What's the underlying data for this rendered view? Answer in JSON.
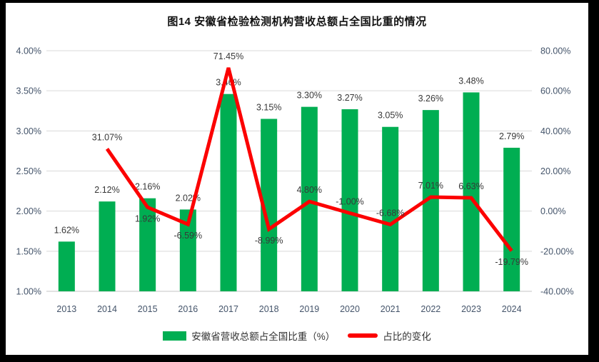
{
  "title": "图14 安徽省检验检测机构营收总额占全国比重的情况",
  "legend": [
    {
      "label": "安徽省营收总额占全国比重（%）",
      "type": "bar",
      "color": "#00AE52"
    },
    {
      "label": "占比的变化",
      "type": "line",
      "color": "#FC0000"
    }
  ],
  "colors": {
    "bar": "#00AE52",
    "line": "#FC0000",
    "grid": "#D9D9D9",
    "axis_text": "#44546A",
    "label_text": "#383838"
  },
  "chart_data": {
    "type": "combo",
    "title": "图14 安徽省检验检测机构营收总额占全国比重的情况",
    "categories": [
      "2013",
      "2014",
      "2015",
      "2016",
      "2017",
      "2018",
      "2019",
      "2020",
      "2021",
      "2022",
      "2023",
      "2024"
    ],
    "series": [
      {
        "name": "安徽省营收总额占全国比重（%）",
        "type": "bar",
        "axis": "left",
        "color": "#00AE52",
        "values": [
          1.62,
          2.12,
          2.16,
          2.02,
          3.46,
          3.15,
          3.3,
          3.27,
          3.05,
          3.26,
          3.48,
          2.79
        ],
        "labels": [
          "1.62%",
          "2.12%",
          "2.16%",
          "2.02%",
          "3.46%",
          "3.15%",
          "3.30%",
          "3.27%",
          "3.05%",
          "3.26%",
          "3.48%",
          "2.79%"
        ]
      },
      {
        "name": "占比的变化",
        "type": "line",
        "axis": "right",
        "color": "#FC0000",
        "values": [
          null,
          31.07,
          1.92,
          -6.59,
          71.45,
          -8.99,
          4.8,
          -1.0,
          -6.68,
          7.01,
          6.63,
          -19.79
        ],
        "labels": [
          null,
          "31.07%",
          "1.92%",
          "-6.59%",
          "71.45%",
          "-8.99%",
          "4.80%",
          "-1.00%",
          "-6.68%",
          "7.01%",
          "6.63%",
          "-19.79%"
        ],
        "label_positions": [
          null,
          "above",
          "below",
          "below",
          "above",
          "below",
          "above",
          "above",
          "above",
          "above",
          "above",
          "below"
        ]
      }
    ],
    "axes": {
      "left": {
        "min": 1.0,
        "max": 4.0,
        "ticks": [
          "4.00%",
          "3.50%",
          "3.00%",
          "2.50%",
          "2.00%",
          "1.50%",
          "1.00%"
        ]
      },
      "right": {
        "min": -40,
        "max": 80,
        "ticks": [
          "80.00%",
          "60.00%",
          "40.00%",
          "20.00%",
          "0.00%",
          "-20.00%",
          "-40.00%"
        ]
      }
    },
    "grid": true,
    "legend_position": "bottom"
  }
}
